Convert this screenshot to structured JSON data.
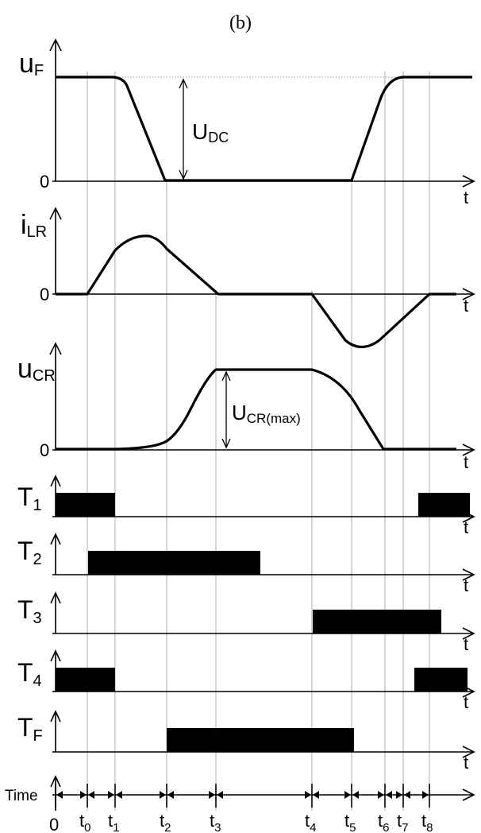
{
  "caption": "(b)",
  "axis_t_label": "t",
  "zero_label": "0",
  "signals": {
    "uF": {
      "main": "u",
      "sub": "F",
      "dim_main": "U",
      "dim_sub": "DC"
    },
    "iLR": {
      "main": "i",
      "sub": "LR"
    },
    "uCR": {
      "main": "u",
      "sub": "CR",
      "dim_main": "U",
      "dim_sub": "CR(max)"
    },
    "T1": {
      "main": "T",
      "sub": "1"
    },
    "T2": {
      "main": "T",
      "sub": "2"
    },
    "T3": {
      "main": "T",
      "sub": "3"
    },
    "T4": {
      "main": "T",
      "sub": "4"
    },
    "TF": {
      "main": "T",
      "sub": "F"
    }
  },
  "time_axis": {
    "label": "Time",
    "origin": "0",
    "ticks": [
      {
        "main": "t",
        "sub": "0"
      },
      {
        "main": "t",
        "sub": "1"
      },
      {
        "main": "t",
        "sub": "2"
      },
      {
        "main": "t",
        "sub": "3"
      },
      {
        "main": "t",
        "sub": "4"
      },
      {
        "main": "t",
        "sub": "5"
      },
      {
        "main": "t",
        "sub": "6"
      },
      {
        "main": "t",
        "sub": "7"
      },
      {
        "main": "t",
        "sub": "8"
      }
    ]
  },
  "switch_states": {
    "T1": [
      [
        -0.6,
        1
      ],
      [
        7.9,
        8.6
      ]
    ],
    "T2": [
      [
        0,
        3.6
      ]
    ],
    "T3": [
      [
        4,
        7.95
      ]
    ],
    "T4": [
      [
        -0.6,
        1
      ],
      [
        7.7,
        8.45
      ]
    ],
    "TF": [
      [
        2,
        5
      ]
    ]
  }
}
